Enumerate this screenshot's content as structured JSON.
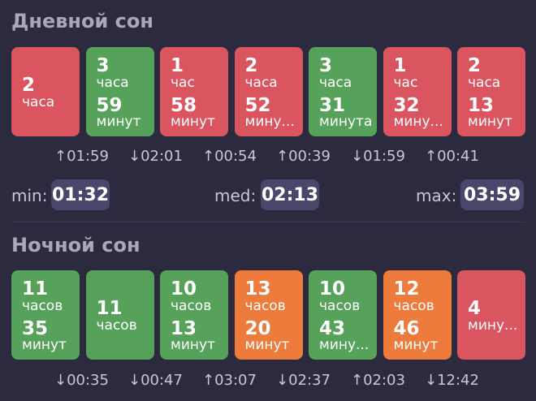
{
  "day": {
    "title": "Дневной сон",
    "cards": [
      {
        "color": "red",
        "layout": "two",
        "n1": "2",
        "u1": "часа",
        "n2": "",
        "u2": ""
      },
      {
        "color": "green",
        "layout": "four",
        "n1": "3",
        "u1": "часа",
        "n2": "59",
        "u2": "минут"
      },
      {
        "color": "red",
        "layout": "four",
        "n1": "1",
        "u1": "час",
        "n2": "58",
        "u2": "минут"
      },
      {
        "color": "red",
        "layout": "four",
        "n1": "2",
        "u1": "часа",
        "n2": "52",
        "u2": "мину..."
      },
      {
        "color": "green",
        "layout": "four",
        "n1": "3",
        "u1": "часа",
        "n2": "31",
        "u2": "минута"
      },
      {
        "color": "red",
        "layout": "four",
        "n1": "1",
        "u1": "час",
        "n2": "32",
        "u2": "мину..."
      },
      {
        "color": "red",
        "layout": "four",
        "n1": "2",
        "u1": "часа",
        "n2": "13",
        "u2": "минут"
      }
    ],
    "diffs": [
      "↑01:59",
      "↓02:01",
      "↑00:54",
      "↑00:39",
      "↓01:59",
      "↑00:41"
    ],
    "stats": {
      "min_label": "min:",
      "min_value": "01:32",
      "med_label": "med:",
      "med_value": "02:13",
      "max_label": "max:",
      "max_value": "03:59"
    }
  },
  "night": {
    "title": "Ночной сон",
    "cards": [
      {
        "color": "green",
        "layout": "four",
        "n1": "11",
        "u1": "часов",
        "n2": "35",
        "u2": "минут"
      },
      {
        "color": "green",
        "layout": "two",
        "n1": "11",
        "u1": "часов",
        "n2": "",
        "u2": ""
      },
      {
        "color": "green",
        "layout": "four",
        "n1": "10",
        "u1": "часов",
        "n2": "13",
        "u2": "минут"
      },
      {
        "color": "orange",
        "layout": "four",
        "n1": "13",
        "u1": "часов",
        "n2": "20",
        "u2": "минут"
      },
      {
        "color": "green",
        "layout": "four",
        "n1": "10",
        "u1": "часов",
        "n2": "43",
        "u2": "мину..."
      },
      {
        "color": "orange",
        "layout": "four",
        "n1": "12",
        "u1": "часов",
        "n2": "46",
        "u2": "минут"
      },
      {
        "color": "red",
        "layout": "two",
        "n1": "4",
        "u1": "мину...",
        "n2": "",
        "u2": ""
      }
    ],
    "diffs": [
      "↓00:35",
      "↓00:47",
      "↑03:07",
      "↓02:37",
      "↑02:03",
      "↓12:42"
    ]
  },
  "colors": {
    "background": "#2b2a3f",
    "red": "#db5560",
    "green": "#57a25b",
    "orange": "#ec7b3c",
    "pill": "#48466a"
  }
}
